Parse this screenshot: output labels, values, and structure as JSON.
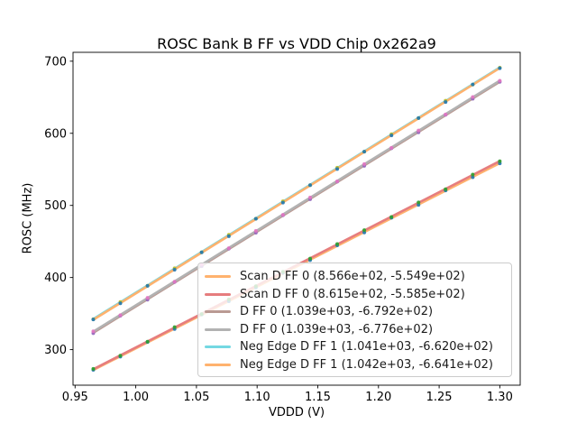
{
  "figure": {
    "background": "#ffffff",
    "text_color": "#000000"
  },
  "chart_data": {
    "type": "scatter",
    "title": "ROSC Bank B FF vs VDD Chip 0x262a9",
    "xlabel": "VDDD (V)",
    "ylabel": "ROSC (MHz)",
    "xlim": [
      0.9483,
      1.3168
    ],
    "ylim": [
      250.7,
      712.3
    ],
    "xticks": [
      "0.95",
      "1.00",
      "1.05",
      "1.10",
      "1.15",
      "1.20",
      "1.25",
      "1.30"
    ],
    "yticks": [
      "300",
      "400",
      "500",
      "600",
      "700"
    ],
    "grid": false,
    "legend_position": "inside lower-right",
    "x": [
      0.965,
      0.9873,
      1.0097,
      1.032,
      1.0543,
      1.0767,
      1.099,
      1.1213,
      1.1437,
      1.166,
      1.1883,
      1.2107,
      1.233,
      1.2553,
      1.2777,
      1.3
    ],
    "series": [
      {
        "name": "Scan D FF 0 (8.566e+02, -5.549e+02)",
        "fit_slope": 856.6,
        "fit_intercept": -554.9,
        "marker_color": "#1f77b4",
        "line_color": "#ffb26e",
        "values": [
          271.9,
          290.3,
          310.6,
          328.5,
          348.8,
          367.0,
          386.1,
          406.4,
          424.1,
          444.6,
          462.5,
          482.9,
          500.8,
          520.8,
          539.0,
          558.2
        ]
      },
      {
        "name": "Scan D FF 0 (8.615e+02, -5.585e+02)",
        "fit_slope": 861.5,
        "fit_intercept": -558.5,
        "marker_color": "#2ca02c",
        "line_color": "#e67d7e",
        "values": [
          273.3,
          291.7,
          311.1,
          331.3,
          349.3,
          369.7,
          388.0,
          408.0,
          426.3,
          446.4,
          465.7,
          484.0,
          504.2,
          522.5,
          542.8,
          561.2
        ]
      },
      {
        "name": "D FF 0 (1.039e+03, -6.792e+02)",
        "fit_slope": 1039.0,
        "fit_intercept": -679.2,
        "marker_color": "#9467bd",
        "line_color": "#ba9a93",
        "values": [
          322.8,
          347.1,
          369.3,
          393.7,
          415.7,
          440.0,
          462.1,
          486.3,
          508.6,
          532.9,
          554.9,
          579.2,
          601.3,
          625.6,
          647.8,
          671.3
        ]
      },
      {
        "name": "D FF 0 (1.039e+03, -6.776e+02)",
        "fit_slope": 1039.0,
        "fit_intercept": -677.6,
        "marker_color": "#e377c2",
        "line_color": "#b2b2b2",
        "values": [
          325.4,
          347.8,
          371.9,
          394.2,
          418.2,
          440.7,
          464.7,
          487.0,
          511.1,
          533.4,
          557.4,
          579.9,
          603.9,
          626.2,
          650.3,
          672.9
        ]
      },
      {
        "name": "Neg Edge D FF 1 (1.041e+03, -6.620e+02)",
        "fit_slope": 1041.0,
        "fit_intercept": -662.0,
        "marker_color": "#bcbd22",
        "line_color": "#74d8e2",
        "values": [
          342.2,
          366.1,
          388.6,
          412.8,
          435.1,
          459.3,
          481.6,
          505.7,
          528.1,
          552.3,
          574.5,
          598.8,
          621.1,
          645.2,
          667.6,
          691.1
        ]
      },
      {
        "name": "Neg Edge D FF 1 (1.042e+03, -6.641e+02)",
        "fit_slope": 1042.0,
        "fit_intercept": -664.1,
        "marker_color": "#1f77b4",
        "line_color": "#ffb26e",
        "values": [
          341.8,
          364.2,
          388.5,
          410.8,
          434.9,
          457.3,
          481.5,
          503.8,
          528.1,
          550.4,
          574.6,
          597.0,
          621.1,
          643.4,
          667.7,
          690.3
        ]
      }
    ]
  }
}
